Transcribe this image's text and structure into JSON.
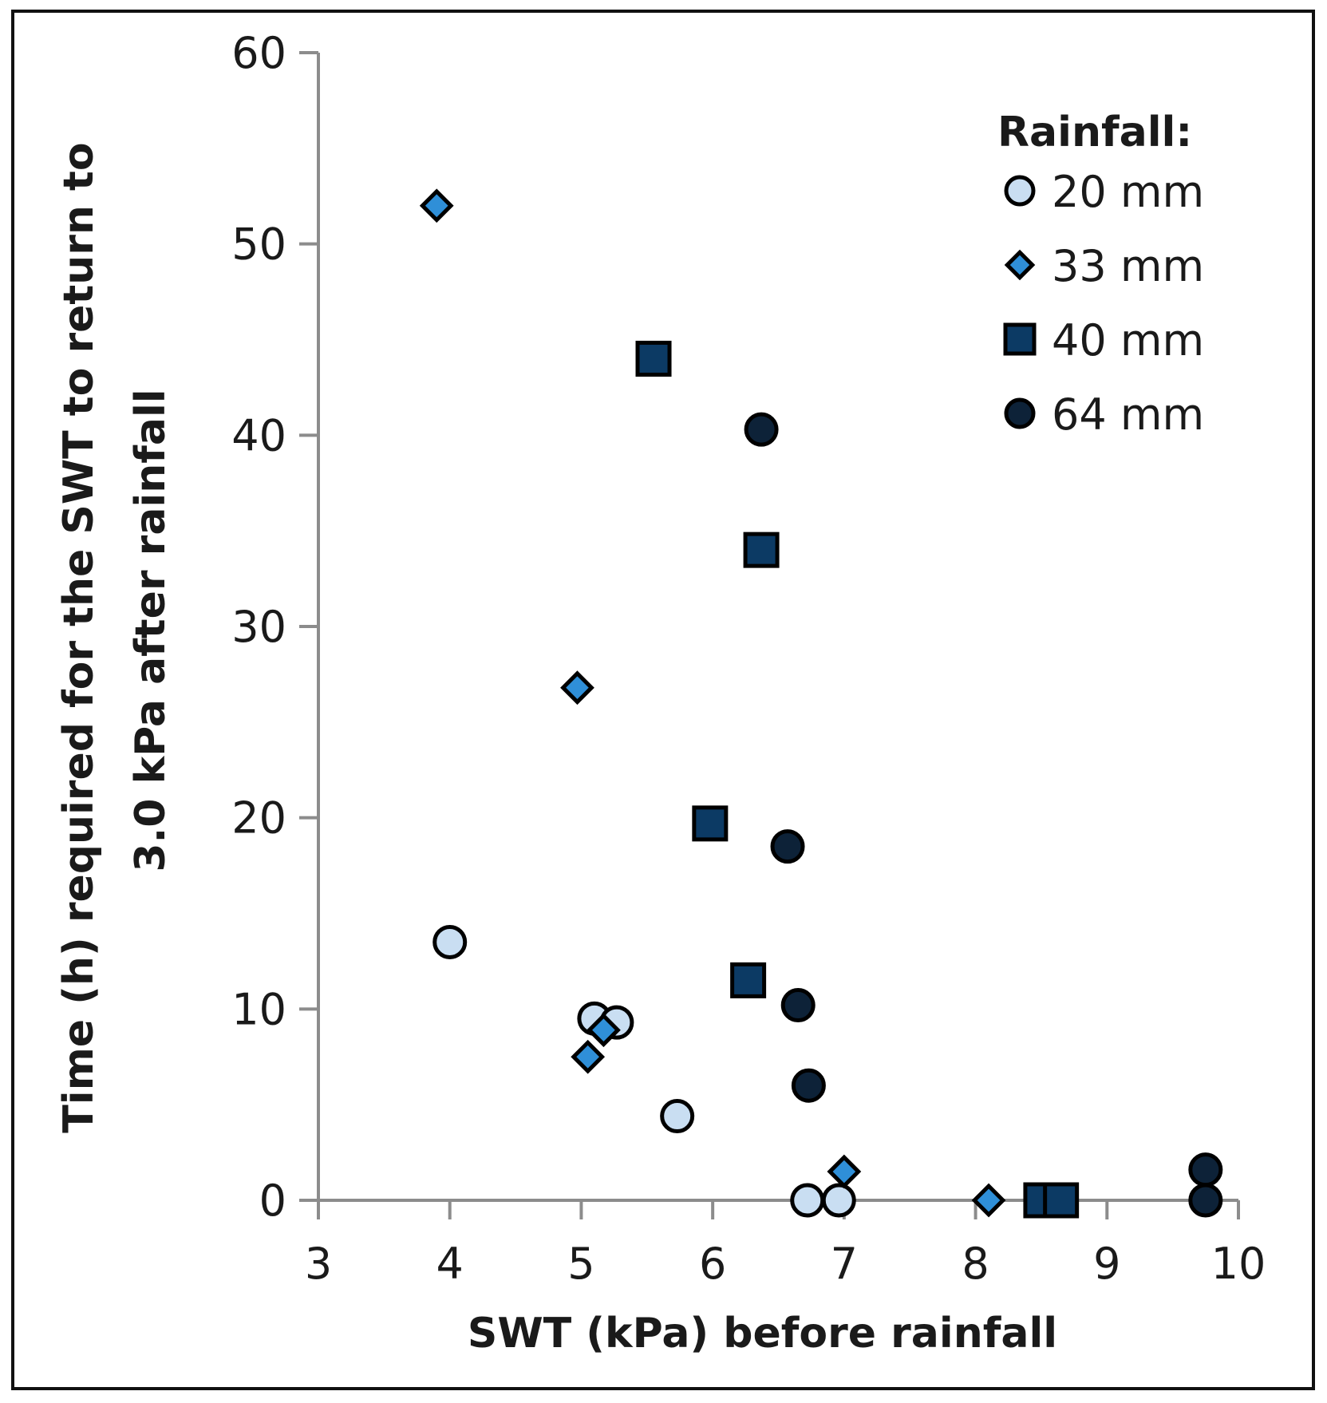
{
  "chart_data": {
    "type": "scatter",
    "title": "",
    "xlabel": "SWT (kPa) before rainfall",
    "ylabel_lines": [
      "Time (h) required for the SWT to return to",
      "3.0 kPa after rainfall"
    ],
    "xlim": [
      3,
      10
    ],
    "ylim": [
      0,
      60
    ],
    "xticks": [
      "3",
      "4",
      "5",
      "6",
      "7",
      "8",
      "9",
      "10"
    ],
    "yticks": [
      "0",
      "10",
      "20",
      "30",
      "40",
      "50",
      "60"
    ],
    "legend_title": "Rainfall:",
    "legend_position": "top-right",
    "series": [
      {
        "name": "20 mm",
        "marker": "circle",
        "color": "#c9def2",
        "points": [
          [
            4.0,
            13.5
          ],
          [
            5.1,
            9.5
          ],
          [
            5.27,
            9.3
          ],
          [
            5.73,
            4.4
          ],
          [
            6.72,
            0.0
          ],
          [
            6.96,
            0.0
          ]
        ]
      },
      {
        "name": "33 mm",
        "marker": "diamond",
        "color": "#2f8fd8",
        "points": [
          [
            3.9,
            52.0
          ],
          [
            4.97,
            26.8
          ],
          [
            5.05,
            7.5
          ],
          [
            5.17,
            8.9
          ],
          [
            7.0,
            1.5
          ],
          [
            8.1,
            0.0
          ]
        ]
      },
      {
        "name": "40 mm",
        "marker": "square",
        "color": "#0c3a64",
        "points": [
          [
            5.55,
            44.0
          ],
          [
            6.37,
            34.0
          ],
          [
            5.98,
            19.7
          ],
          [
            6.27,
            11.5
          ],
          [
            8.5,
            0.0
          ],
          [
            8.65,
            0.0
          ]
        ]
      },
      {
        "name": "64 mm",
        "marker": "circle",
        "color": "#0d2238",
        "points": [
          [
            6.37,
            40.3
          ],
          [
            6.57,
            18.5
          ],
          [
            6.65,
            10.2
          ],
          [
            6.73,
            6.0
          ],
          [
            9.75,
            1.6
          ],
          [
            9.75,
            0.0
          ]
        ]
      }
    ]
  }
}
